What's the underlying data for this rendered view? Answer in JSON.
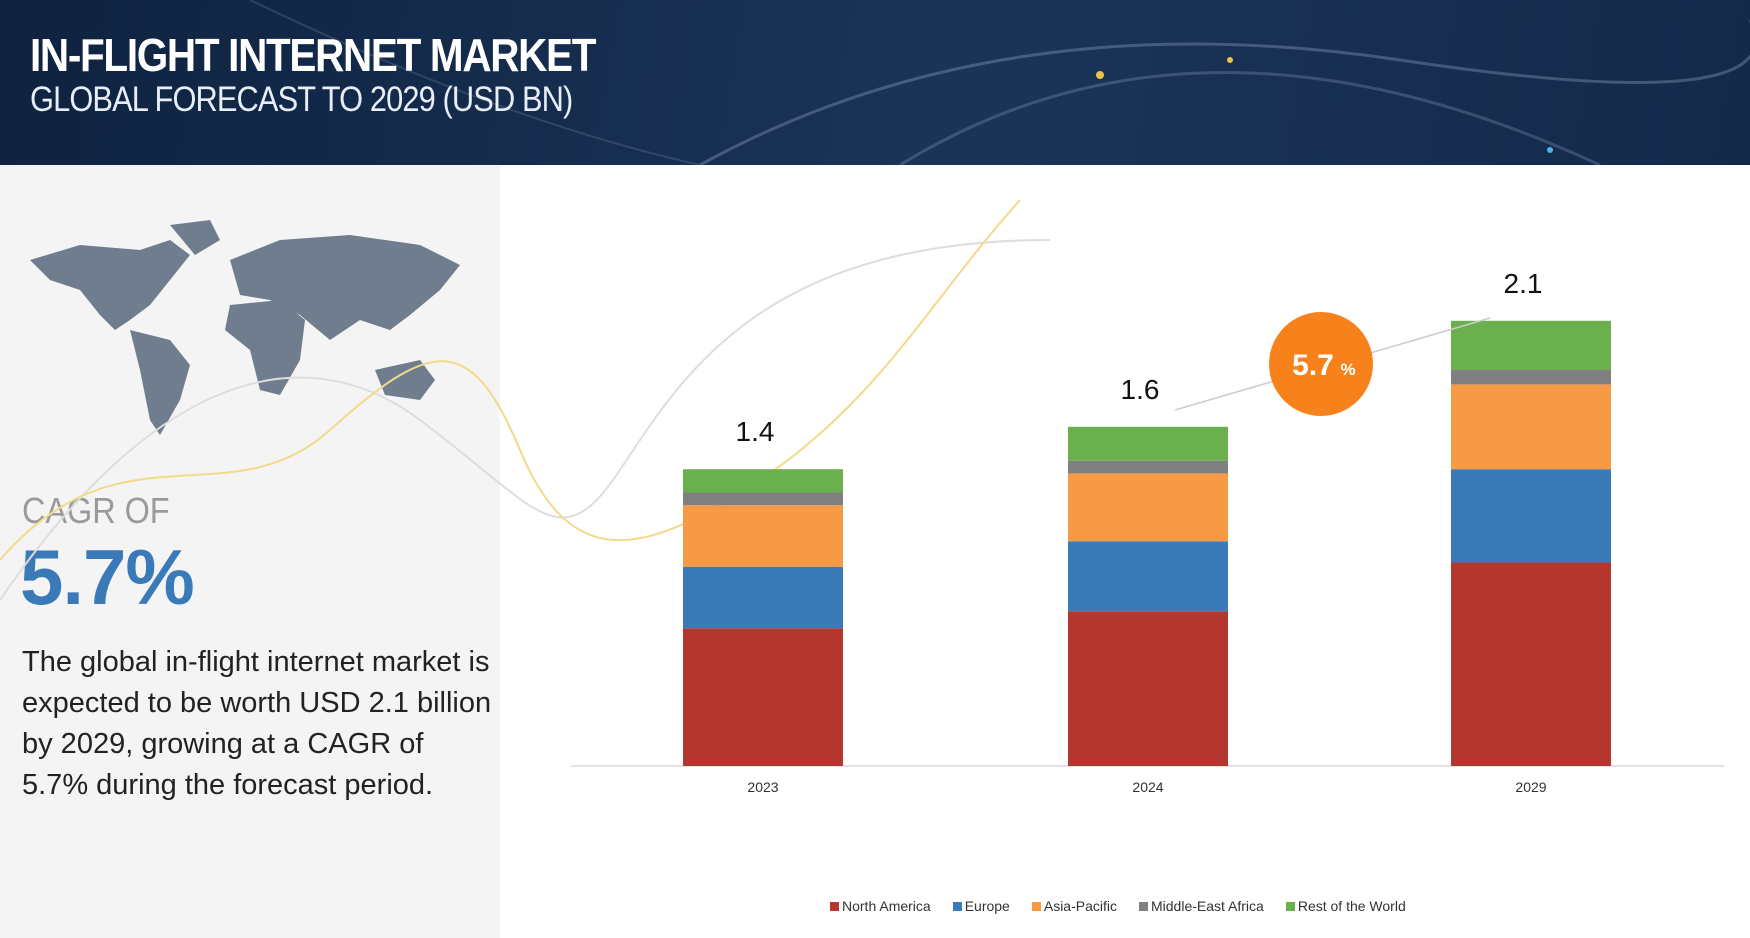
{
  "header": {
    "title": "IN-FLIGHT INTERNET MARKET",
    "subtitle": "GLOBAL FORECAST TO 2029 (USD BN)"
  },
  "left": {
    "cagr_label": "CAGR OF",
    "cagr_value": "5.7%",
    "description": "The global in-flight internet market is expected to be worth USD 2.1 billion by 2029, growing at a CAGR of 5.7% during the forecast period."
  },
  "chart_data": {
    "type": "bar",
    "stacked": true,
    "categories": [
      "2023",
      "2024",
      "2029"
    ],
    "totals": [
      "1.4",
      "1.6",
      "2.1"
    ],
    "cagr_badge": {
      "value": "5.7",
      "unit": "%"
    },
    "series": [
      {
        "name": "North America",
        "color": "#b5362f",
        "values": [
          0.65,
          0.73,
          0.96
        ]
      },
      {
        "name": "Europe",
        "color": "#3a7ab8",
        "values": [
          0.29,
          0.33,
          0.44
        ]
      },
      {
        "name": "Asia-Pacific",
        "color": "#f79a45",
        "values": [
          0.29,
          0.32,
          0.4
        ]
      },
      {
        "name": "Middle-East Africa",
        "color": "#808080",
        "values": [
          0.06,
          0.06,
          0.07
        ]
      },
      {
        "name": "Rest of the World",
        "color": "#6ab04c",
        "values": [
          0.11,
          0.16,
          0.23
        ]
      }
    ],
    "legend": "bottom"
  }
}
